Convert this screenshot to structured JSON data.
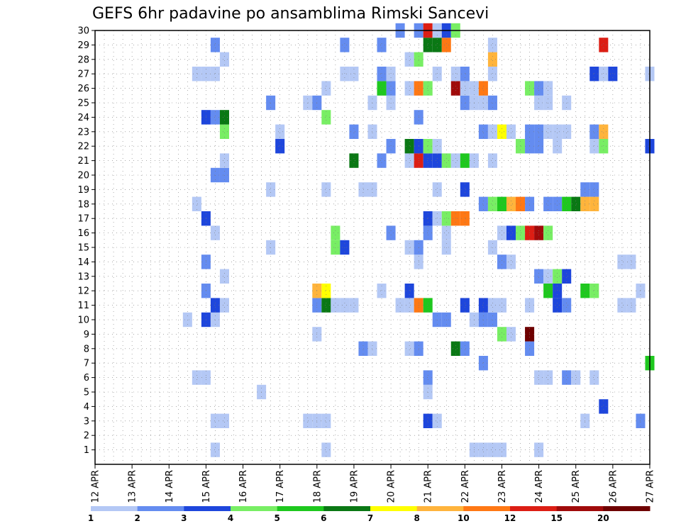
{
  "chart_data": {
    "type": "heatmap",
    "title": "GEFS 6hr padavine po ansamblima Rimski Sancevi",
    "xlabel": "",
    "ylabel": "",
    "x_tick_labels": [
      "12 APR",
      "13 APR",
      "14 APR",
      "15 APR",
      "16 APR",
      "17 APR",
      "18 APR",
      "19 APR",
      "20 APR",
      "21 APR",
      "22 APR",
      "23 APR",
      "24 APR",
      "25 APR",
      "26 APR",
      "27 APR"
    ],
    "y_tick_labels": [
      "1",
      "2",
      "3",
      "4",
      "5",
      "6",
      "7",
      "8",
      "9",
      "10",
      "11",
      "12",
      "13",
      "14",
      "15",
      "16",
      "17",
      "18",
      "19",
      "20",
      "21",
      "22",
      "23",
      "24",
      "25",
      "26",
      "27",
      "28",
      "29",
      "30"
    ],
    "xlim_steps": [
      0,
      60
    ],
    "ylim": [
      0,
      30
    ],
    "steps_per_day": 4,
    "grid": true,
    "colorbar": {
      "labels": [
        "1",
        "2",
        "3",
        "4",
        "5",
        "6",
        "7",
        "8",
        "10",
        "12",
        "15",
        "20"
      ],
      "colors": [
        "#b4c8f5",
        "#648cf0",
        "#1e46dc",
        "#78ee64",
        "#1ec81e",
        "#0a7814",
        "#ffff00",
        "#ffb43c",
        "#ff7814",
        "#dc1e14",
        "#a00a0a",
        "#6e0000"
      ]
    },
    "cells": [
      {
        "s": 13,
        "m": 0,
        "c": 0
      },
      {
        "s": 25,
        "m": 0,
        "c": 0
      },
      {
        "s": 41,
        "m": 0,
        "c": 0
      },
      {
        "s": 42,
        "m": 0,
        "c": 0
      },
      {
        "s": 43,
        "m": 0,
        "c": 0
      },
      {
        "s": 44,
        "m": 0,
        "c": 0
      },
      {
        "s": 48,
        "m": 0,
        "c": 0
      },
      {
        "s": 13,
        "m": 2,
        "c": 0
      },
      {
        "s": 14,
        "m": 2,
        "c": 0
      },
      {
        "s": 23,
        "m": 2,
        "c": 0
      },
      {
        "s": 24,
        "m": 2,
        "c": 0
      },
      {
        "s": 25,
        "m": 2,
        "c": 0
      },
      {
        "s": 36,
        "m": 2,
        "c": 2
      },
      {
        "s": 37,
        "m": 2,
        "c": 0
      },
      {
        "s": 53,
        "m": 2,
        "c": 0
      },
      {
        "s": 59,
        "m": 2,
        "c": 1
      },
      {
        "s": 55,
        "m": 3,
        "c": 2
      },
      {
        "s": 18,
        "m": 4,
        "c": 0
      },
      {
        "s": 36,
        "m": 4,
        "c": 0
      },
      {
        "s": 11,
        "m": 5,
        "c": 0
      },
      {
        "s": 12,
        "m": 5,
        "c": 0
      },
      {
        "s": 36,
        "m": 5,
        "c": 1
      },
      {
        "s": 48,
        "m": 5,
        "c": 0
      },
      {
        "s": 49,
        "m": 5,
        "c": 0
      },
      {
        "s": 51,
        "m": 5,
        "c": 1
      },
      {
        "s": 52,
        "m": 5,
        "c": 0
      },
      {
        "s": 54,
        "m": 5,
        "c": 0
      },
      {
        "s": 42,
        "m": 6,
        "c": 1
      },
      {
        "s": 60,
        "m": 6,
        "c": 4
      },
      {
        "s": 29,
        "m": 7,
        "c": 1
      },
      {
        "s": 30,
        "m": 7,
        "c": 0
      },
      {
        "s": 34,
        "m": 7,
        "c": 0
      },
      {
        "s": 35,
        "m": 7,
        "c": 1
      },
      {
        "s": 39,
        "m": 7,
        "c": 5
      },
      {
        "s": 40,
        "m": 7,
        "c": 1
      },
      {
        "s": 47,
        "m": 7,
        "c": 1
      },
      {
        "s": 24,
        "m": 8,
        "c": 0
      },
      {
        "s": 44,
        "m": 8,
        "c": 3
      },
      {
        "s": 45,
        "m": 8,
        "c": 0
      },
      {
        "s": 47,
        "m": 8,
        "c": 11
      },
      {
        "s": 10,
        "m": 9,
        "c": 0
      },
      {
        "s": 12,
        "m": 9,
        "c": 2
      },
      {
        "s": 13,
        "m": 9,
        "c": 0
      },
      {
        "s": 37,
        "m": 9,
        "c": 1
      },
      {
        "s": 38,
        "m": 9,
        "c": 1
      },
      {
        "s": 41,
        "m": 9,
        "c": 0
      },
      {
        "s": 42,
        "m": 9,
        "c": 1
      },
      {
        "s": 43,
        "m": 9,
        "c": 1
      },
      {
        "s": 13,
        "m": 10,
        "c": 2
      },
      {
        "s": 14,
        "m": 10,
        "c": 0
      },
      {
        "s": 24,
        "m": 10,
        "c": 1
      },
      {
        "s": 25,
        "m": 10,
        "c": 5
      },
      {
        "s": 26,
        "m": 10,
        "c": 0
      },
      {
        "s": 27,
        "m": 10,
        "c": 0
      },
      {
        "s": 28,
        "m": 10,
        "c": 0
      },
      {
        "s": 33,
        "m": 10,
        "c": 0
      },
      {
        "s": 34,
        "m": 10,
        "c": 0
      },
      {
        "s": 35,
        "m": 10,
        "c": 8
      },
      {
        "s": 36,
        "m": 10,
        "c": 4
      },
      {
        "s": 40,
        "m": 10,
        "c": 2
      },
      {
        "s": 42,
        "m": 10,
        "c": 2
      },
      {
        "s": 43,
        "m": 10,
        "c": 0
      },
      {
        "s": 44,
        "m": 10,
        "c": 0
      },
      {
        "s": 47,
        "m": 10,
        "c": 0
      },
      {
        "s": 50,
        "m": 10,
        "c": 2
      },
      {
        "s": 51,
        "m": 10,
        "c": 1
      },
      {
        "s": 57,
        "m": 10,
        "c": 0
      },
      {
        "s": 58,
        "m": 10,
        "c": 0
      },
      {
        "s": 12,
        "m": 11,
        "c": 1
      },
      {
        "s": 24,
        "m": 11,
        "c": 7
      },
      {
        "s": 25,
        "m": 11,
        "c": 6
      },
      {
        "s": 31,
        "m": 11,
        "c": 0
      },
      {
        "s": 34,
        "m": 11,
        "c": 2
      },
      {
        "s": 49,
        "m": 11,
        "c": 4
      },
      {
        "s": 50,
        "m": 11,
        "c": 2
      },
      {
        "s": 53,
        "m": 11,
        "c": 4
      },
      {
        "s": 54,
        "m": 11,
        "c": 3
      },
      {
        "s": 59,
        "m": 11,
        "c": 0
      },
      {
        "s": 14,
        "m": 12,
        "c": 0
      },
      {
        "s": 48,
        "m": 12,
        "c": 1
      },
      {
        "s": 49,
        "m": 12,
        "c": 0
      },
      {
        "s": 50,
        "m": 12,
        "c": 3
      },
      {
        "s": 51,
        "m": 12,
        "c": 2
      },
      {
        "s": 12,
        "m": 13,
        "c": 1
      },
      {
        "s": 35,
        "m": 13,
        "c": 0
      },
      {
        "s": 44,
        "m": 13,
        "c": 1
      },
      {
        "s": 45,
        "m": 13,
        "c": 0
      },
      {
        "s": 57,
        "m": 13,
        "c": 0
      },
      {
        "s": 58,
        "m": 13,
        "c": 0
      },
      {
        "s": 19,
        "m": 14,
        "c": 0
      },
      {
        "s": 26,
        "m": 14,
        "c": 3
      },
      {
        "s": 27,
        "m": 14,
        "c": 2
      },
      {
        "s": 34,
        "m": 14,
        "c": 0
      },
      {
        "s": 35,
        "m": 14,
        "c": 1
      },
      {
        "s": 38,
        "m": 14,
        "c": 0
      },
      {
        "s": 43,
        "m": 14,
        "c": 0
      },
      {
        "s": 13,
        "m": 15,
        "c": 0
      },
      {
        "s": 26,
        "m": 15,
        "c": 3
      },
      {
        "s": 32,
        "m": 15,
        "c": 1
      },
      {
        "s": 36,
        "m": 15,
        "c": 1
      },
      {
        "s": 38,
        "m": 15,
        "c": 0
      },
      {
        "s": 44,
        "m": 15,
        "c": 0
      },
      {
        "s": 45,
        "m": 15,
        "c": 2
      },
      {
        "s": 46,
        "m": 15,
        "c": 3
      },
      {
        "s": 47,
        "m": 15,
        "c": 9
      },
      {
        "s": 48,
        "m": 15,
        "c": 10
      },
      {
        "s": 49,
        "m": 15,
        "c": 3
      },
      {
        "s": 12,
        "m": 16,
        "c": 2
      },
      {
        "s": 36,
        "m": 16,
        "c": 2
      },
      {
        "s": 37,
        "m": 16,
        "c": 0
      },
      {
        "s": 38,
        "m": 16,
        "c": 3
      },
      {
        "s": 39,
        "m": 16,
        "c": 8
      },
      {
        "s": 40,
        "m": 16,
        "c": 8
      },
      {
        "s": 11,
        "m": 17,
        "c": 0
      },
      {
        "s": 42,
        "m": 17,
        "c": 1
      },
      {
        "s": 43,
        "m": 17,
        "c": 3
      },
      {
        "s": 44,
        "m": 17,
        "c": 4
      },
      {
        "s": 45,
        "m": 17,
        "c": 7
      },
      {
        "s": 46,
        "m": 17,
        "c": 8
      },
      {
        "s": 47,
        "m": 17,
        "c": 1
      },
      {
        "s": 49,
        "m": 17,
        "c": 1
      },
      {
        "s": 50,
        "m": 17,
        "c": 1
      },
      {
        "s": 51,
        "m": 17,
        "c": 4
      },
      {
        "s": 52,
        "m": 17,
        "c": 5
      },
      {
        "s": 53,
        "m": 17,
        "c": 7
      },
      {
        "s": 54,
        "m": 17,
        "c": 7
      },
      {
        "s": 19,
        "m": 18,
        "c": 0
      },
      {
        "s": 25,
        "m": 18,
        "c": 0
      },
      {
        "s": 29,
        "m": 18,
        "c": 0
      },
      {
        "s": 30,
        "m": 18,
        "c": 0
      },
      {
        "s": 37,
        "m": 18,
        "c": 0
      },
      {
        "s": 40,
        "m": 18,
        "c": 2
      },
      {
        "s": 53,
        "m": 18,
        "c": 1
      },
      {
        "s": 54,
        "m": 18,
        "c": 1
      },
      {
        "s": 13,
        "m": 19,
        "c": 1
      },
      {
        "s": 14,
        "m": 19,
        "c": 1
      },
      {
        "s": 14,
        "m": 20,
        "c": 0
      },
      {
        "s": 28,
        "m": 20,
        "c": 5
      },
      {
        "s": 31,
        "m": 20,
        "c": 1
      },
      {
        "s": 34,
        "m": 20,
        "c": 0
      },
      {
        "s": 35,
        "m": 20,
        "c": 9
      },
      {
        "s": 36,
        "m": 20,
        "c": 2
      },
      {
        "s": 37,
        "m": 20,
        "c": 2
      },
      {
        "s": 38,
        "m": 20,
        "c": 3
      },
      {
        "s": 39,
        "m": 20,
        "c": 0
      },
      {
        "s": 40,
        "m": 20,
        "c": 4
      },
      {
        "s": 41,
        "m": 20,
        "c": 0
      },
      {
        "s": 43,
        "m": 20,
        "c": 0
      },
      {
        "s": 20,
        "m": 21,
        "c": 2
      },
      {
        "s": 32,
        "m": 21,
        "c": 1
      },
      {
        "s": 34,
        "m": 21,
        "c": 5
      },
      {
        "s": 35,
        "m": 21,
        "c": 2
      },
      {
        "s": 36,
        "m": 21,
        "c": 3
      },
      {
        "s": 37,
        "m": 21,
        "c": 0
      },
      {
        "s": 46,
        "m": 21,
        "c": 3
      },
      {
        "s": 47,
        "m": 21,
        "c": 1
      },
      {
        "s": 48,
        "m": 21,
        "c": 1
      },
      {
        "s": 50,
        "m": 21,
        "c": 0
      },
      {
        "s": 54,
        "m": 21,
        "c": 0
      },
      {
        "s": 55,
        "m": 21,
        "c": 3
      },
      {
        "s": 60,
        "m": 21,
        "c": 2
      },
      {
        "s": 14,
        "m": 22,
        "c": 3
      },
      {
        "s": 20,
        "m": 22,
        "c": 0
      },
      {
        "s": 28,
        "m": 22,
        "c": 1
      },
      {
        "s": 30,
        "m": 22,
        "c": 0
      },
      {
        "s": 42,
        "m": 22,
        "c": 1
      },
      {
        "s": 43,
        "m": 22,
        "c": 0
      },
      {
        "s": 44,
        "m": 22,
        "c": 6
      },
      {
        "s": 45,
        "m": 22,
        "c": 0
      },
      {
        "s": 47,
        "m": 22,
        "c": 1
      },
      {
        "s": 48,
        "m": 22,
        "c": 1
      },
      {
        "s": 49,
        "m": 22,
        "c": 0
      },
      {
        "s": 50,
        "m": 22,
        "c": 0
      },
      {
        "s": 51,
        "m": 22,
        "c": 0
      },
      {
        "s": 54,
        "m": 22,
        "c": 1
      },
      {
        "s": 55,
        "m": 22,
        "c": 7
      },
      {
        "s": 12,
        "m": 23,
        "c": 2
      },
      {
        "s": 13,
        "m": 23,
        "c": 1
      },
      {
        "s": 14,
        "m": 23,
        "c": 5
      },
      {
        "s": 25,
        "m": 23,
        "c": 3
      },
      {
        "s": 35,
        "m": 23,
        "c": 1
      },
      {
        "s": 19,
        "m": 24,
        "c": 1
      },
      {
        "s": 23,
        "m": 24,
        "c": 0
      },
      {
        "s": 24,
        "m": 24,
        "c": 1
      },
      {
        "s": 30,
        "m": 24,
        "c": 0
      },
      {
        "s": 32,
        "m": 24,
        "c": 0
      },
      {
        "s": 40,
        "m": 24,
        "c": 1
      },
      {
        "s": 41,
        "m": 24,
        "c": 0
      },
      {
        "s": 42,
        "m": 24,
        "c": 0
      },
      {
        "s": 43,
        "m": 24,
        "c": 1
      },
      {
        "s": 48,
        "m": 24,
        "c": 0
      },
      {
        "s": 49,
        "m": 24,
        "c": 0
      },
      {
        "s": 51,
        "m": 24,
        "c": 0
      },
      {
        "s": 25,
        "m": 25,
        "c": 0
      },
      {
        "s": 31,
        "m": 25,
        "c": 4
      },
      {
        "s": 32,
        "m": 25,
        "c": 1
      },
      {
        "s": 34,
        "m": 25,
        "c": 0
      },
      {
        "s": 35,
        "m": 25,
        "c": 8
      },
      {
        "s": 36,
        "m": 25,
        "c": 3
      },
      {
        "s": 39,
        "m": 25,
        "c": 10
      },
      {
        "s": 40,
        "m": 25,
        "c": 0
      },
      {
        "s": 41,
        "m": 25,
        "c": 0
      },
      {
        "s": 42,
        "m": 25,
        "c": 8
      },
      {
        "s": 47,
        "m": 25,
        "c": 3
      },
      {
        "s": 48,
        "m": 25,
        "c": 1
      },
      {
        "s": 49,
        "m": 25,
        "c": 0
      },
      {
        "s": 11,
        "m": 26,
        "c": 0
      },
      {
        "s": 12,
        "m": 26,
        "c": 0
      },
      {
        "s": 13,
        "m": 26,
        "c": 0
      },
      {
        "s": 27,
        "m": 26,
        "c": 0
      },
      {
        "s": 28,
        "m": 26,
        "c": 0
      },
      {
        "s": 31,
        "m": 26,
        "c": 1
      },
      {
        "s": 32,
        "m": 26,
        "c": 0
      },
      {
        "s": 37,
        "m": 26,
        "c": 0
      },
      {
        "s": 39,
        "m": 26,
        "c": 0
      },
      {
        "s": 40,
        "m": 26,
        "c": 1
      },
      {
        "s": 43,
        "m": 26,
        "c": 0
      },
      {
        "s": 54,
        "m": 26,
        "c": 2
      },
      {
        "s": 55,
        "m": 26,
        "c": 0
      },
      {
        "s": 56,
        "m": 26,
        "c": 2
      },
      {
        "s": 60,
        "m": 26,
        "c": 0
      },
      {
        "s": 14,
        "m": 27,
        "c": 0
      },
      {
        "s": 34,
        "m": 27,
        "c": 0
      },
      {
        "s": 35,
        "m": 27,
        "c": 3
      },
      {
        "s": 43,
        "m": 27,
        "c": 7
      },
      {
        "s": 13,
        "m": 28,
        "c": 1
      },
      {
        "s": 27,
        "m": 28,
        "c": 1
      },
      {
        "s": 31,
        "m": 28,
        "c": 1
      },
      {
        "s": 36,
        "m": 28,
        "c": 5
      },
      {
        "s": 37,
        "m": 28,
        "c": 5
      },
      {
        "s": 38,
        "m": 28,
        "c": 8
      },
      {
        "s": 43,
        "m": 28,
        "c": 0
      },
      {
        "s": 55,
        "m": 28,
        "c": 9
      },
      {
        "s": 33,
        "m": 29,
        "c": 1
      },
      {
        "s": 35,
        "m": 29,
        "c": 1
      },
      {
        "s": 36,
        "m": 29,
        "c": 9
      },
      {
        "s": 37,
        "m": 29,
        "c": 0
      },
      {
        "s": 38,
        "m": 29,
        "c": 2
      },
      {
        "s": 39,
        "m": 29,
        "c": 3
      }
    ]
  }
}
